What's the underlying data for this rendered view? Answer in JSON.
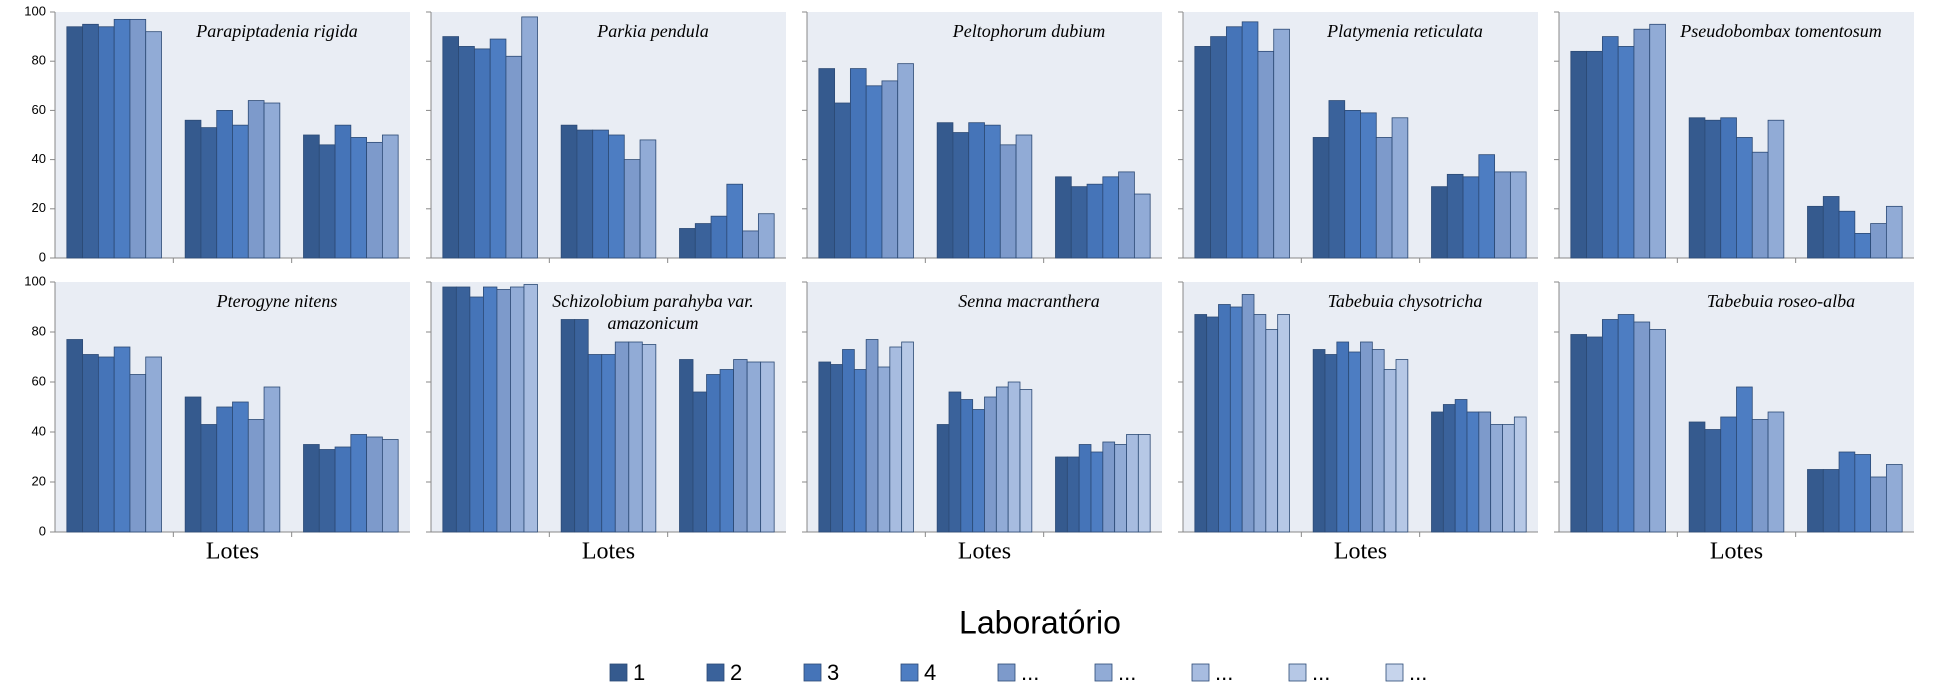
{
  "legend": {
    "title": "Laboratório",
    "series": [
      {
        "name": "1",
        "color": "#355a8e"
      },
      {
        "name": "2",
        "color": "#3a629b"
      },
      {
        "name": "3",
        "color": "#4574b8"
      },
      {
        "name": "4",
        "color": "#4d7dc2"
      },
      {
        "name": "...",
        "color": "#7d9acb"
      },
      {
        "name": "...",
        "color": "#91abd6"
      },
      {
        "name": "...",
        "color": "#a7bce0"
      },
      {
        "name": "...",
        "color": "#b6c8e6"
      },
      {
        "name": "...",
        "color": "#c6d4ec"
      }
    ]
  },
  "ylim": [
    0,
    100
  ],
  "yticks": [
    0,
    20,
    40,
    60,
    80,
    100
  ],
  "xlabel": "Lotes",
  "chart_data": [
    {
      "type": "bar",
      "title": "Parapiptadenia rigida",
      "categories": [
        null,
        null,
        null
      ],
      "values": [
        [
          94,
          95,
          94,
          97,
          97,
          92
        ],
        [
          56,
          53,
          60,
          54,
          64,
          63
        ],
        [
          50,
          46,
          54,
          49,
          47,
          50
        ]
      ]
    },
    {
      "type": "bar",
      "title": "Parkia pendula",
      "categories": [
        null,
        null,
        null
      ],
      "values": [
        [
          90,
          86,
          85,
          89,
          82,
          98
        ],
        [
          54,
          52,
          52,
          50,
          40,
          48
        ],
        [
          12,
          14,
          17,
          30,
          11,
          18
        ]
      ]
    },
    {
      "type": "bar",
      "title": "Peltophorum dubium",
      "categories": [
        null,
        null,
        null
      ],
      "values": [
        [
          77,
          63,
          77,
          70,
          72,
          79
        ],
        [
          55,
          51,
          55,
          54,
          46,
          50
        ],
        [
          33,
          29,
          30,
          33,
          35,
          26
        ]
      ]
    },
    {
      "type": "bar",
      "title": "Platymenia reticulata",
      "categories": [
        null,
        null,
        null
      ],
      "values": [
        [
          86,
          90,
          94,
          96,
          84,
          93
        ],
        [
          49,
          64,
          60,
          59,
          49,
          57
        ],
        [
          29,
          34,
          33,
          42,
          35,
          35
        ]
      ]
    },
    {
      "type": "bar",
      "title": "Pseudobombax tomentosum",
      "categories": [
        null,
        null,
        null
      ],
      "values": [
        [
          84,
          84,
          90,
          86,
          93,
          95
        ],
        [
          57,
          56,
          57,
          49,
          43,
          56
        ],
        [
          21,
          25,
          19,
          10,
          14,
          21
        ]
      ]
    },
    {
      "type": "bar",
      "title": "Pterogyne nitens",
      "categories": [
        null,
        null,
        null
      ],
      "values": [
        [
          77,
          71,
          70,
          74,
          63,
          70
        ],
        [
          54,
          43,
          50,
          52,
          45,
          58
        ],
        [
          35,
          33,
          34,
          39,
          38,
          37
        ]
      ]
    },
    {
      "type": "bar",
      "title": "Schizolobium parahyba var. amazonicum",
      "categories": [
        null,
        null,
        null
      ],
      "values": [
        [
          98,
          98,
          94,
          98,
          97,
          98,
          99
        ],
        [
          85,
          85,
          71,
          71,
          76,
          76,
          75
        ],
        [
          69,
          56,
          63,
          65,
          69,
          68,
          68
        ]
      ]
    },
    {
      "type": "bar",
      "title": "Senna macranthera",
      "categories": [
        null,
        null,
        null
      ],
      "values": [
        [
          68,
          67,
          73,
          65,
          77,
          66,
          74,
          76
        ],
        [
          43,
          56,
          53,
          49,
          54,
          58,
          60,
          57
        ],
        [
          30,
          30,
          35,
          32,
          36,
          35,
          39,
          39
        ]
      ]
    },
    {
      "type": "bar",
      "title": "Tabebuia chysotricha",
      "categories": [
        null,
        null,
        null
      ],
      "values": [
        [
          87,
          86,
          91,
          90,
          95,
          87,
          81,
          87
        ],
        [
          73,
          71,
          76,
          72,
          76,
          73,
          65,
          69
        ],
        [
          48,
          51,
          53,
          48,
          48,
          43,
          43,
          46
        ]
      ]
    },
    {
      "type": "bar",
      "title": "Tabebuia roseo-alba",
      "categories": [
        null,
        null,
        null
      ],
      "values": [
        [
          79,
          78,
          85,
          87,
          84,
          81
        ],
        [
          44,
          41,
          46,
          58,
          45,
          48
        ],
        [
          25,
          25,
          32,
          31,
          22,
          27
        ]
      ]
    }
  ]
}
